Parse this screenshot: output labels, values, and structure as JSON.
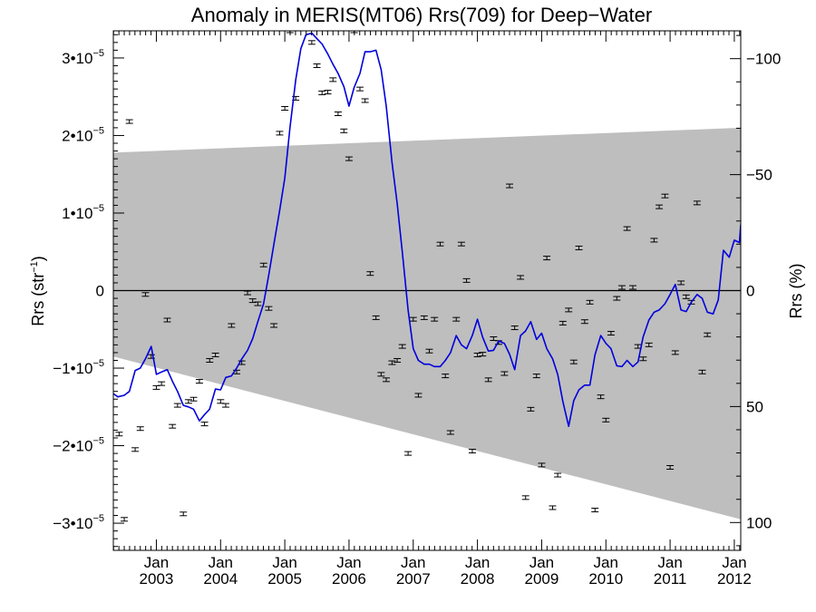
{
  "chart_data": {
    "type": "line",
    "title": "Anomaly in MERIS(MT06) Rrs(709) for Deep−Water",
    "ylabel": "Rrs (str",
    "ylabel_sup": "−1",
    "ylabel_close": ")",
    "y2label": "Rrs (%)",
    "ylim": [
      -3.35e-05,
      3.35e-05
    ],
    "xlim": [
      2002.33,
      2012.1
    ],
    "y2lim": [
      112,
      -112
    ],
    "x_ticks": [
      {
        "x": 2003.0,
        "month": "Jan",
        "year": "2003"
      },
      {
        "x": 2004.0,
        "month": "Jan",
        "year": "2004"
      },
      {
        "x": 2005.0,
        "month": "Jan",
        "year": "2005"
      },
      {
        "x": 2006.0,
        "month": "Jan",
        "year": "2006"
      },
      {
        "x": 2007.0,
        "month": "Jan",
        "year": "2007"
      },
      {
        "x": 2008.0,
        "month": "Jan",
        "year": "2008"
      },
      {
        "x": 2009.0,
        "month": "Jan",
        "year": "2009"
      },
      {
        "x": 2010.0,
        "month": "Jan",
        "year": "2010"
      },
      {
        "x": 2011.0,
        "month": "Jan",
        "year": "2011"
      },
      {
        "x": 2012.0,
        "month": "Jan",
        "year": "2012"
      }
    ],
    "y_ticks": [
      {
        "v": 3e-05,
        "label": "3•10",
        "sup": "−5"
      },
      {
        "v": 2e-05,
        "label": "2•10",
        "sup": "−5"
      },
      {
        "v": 1e-05,
        "label": "1•10",
        "sup": "−5"
      },
      {
        "v": 0,
        "label": "0",
        "sup": ""
      },
      {
        "v": -1e-05,
        "label": "−1•10",
        "sup": "−5"
      },
      {
        "v": -2e-05,
        "label": "−2•10",
        "sup": "−5"
      },
      {
        "v": -3e-05,
        "label": "−3•10",
        "sup": "−5"
      }
    ],
    "y2_ticks": [
      {
        "v": -100,
        "label": "−100"
      },
      {
        "v": -50,
        "label": "−50"
      },
      {
        "v": 0,
        "label": "0"
      },
      {
        "v": 50,
        "label": "50"
      },
      {
        "v": 100,
        "label": "100"
      }
    ],
    "band": {
      "x_start": 2002.33,
      "x_end": 2012.1,
      "upper": [
        1.78e-05,
        2.1e-05
      ],
      "lower": [
        -8.5e-06,
        -2.95e-05
      ],
      "color": "#bebebe"
    },
    "zero_line": 0,
    "line_color": "#0000dd",
    "line": [
      [
        2002.33,
        -1.33e-05
      ],
      [
        2002.4,
        -1.37e-05
      ],
      [
        2002.5,
        -1.35e-05
      ],
      [
        2002.58,
        -1.3e-05
      ],
      [
        2002.67,
        -1.03e-05
      ],
      [
        2002.75,
        -1e-05
      ],
      [
        2002.83,
        -8.8e-06
      ],
      [
        2002.92,
        -7.2e-06
      ],
      [
        2003.0,
        -1.08e-05
      ],
      [
        2003.08,
        -1.05e-05
      ],
      [
        2003.17,
        -1.02e-05
      ],
      [
        2003.25,
        -1.17e-05
      ],
      [
        2003.33,
        -1.3e-05
      ],
      [
        2003.42,
        -1.48e-05
      ],
      [
        2003.5,
        -1.5e-05
      ],
      [
        2003.58,
        -1.53e-05
      ],
      [
        2003.67,
        -1.68e-05
      ],
      [
        2003.75,
        -1.6e-05
      ],
      [
        2003.83,
        -1.53e-05
      ],
      [
        2003.92,
        -1.27e-05
      ],
      [
        2004.0,
        -1.28e-05
      ],
      [
        2004.08,
        -1.12e-05
      ],
      [
        2004.17,
        -1.1e-05
      ],
      [
        2004.25,
        -1e-05
      ],
      [
        2004.33,
        -8.8e-06
      ],
      [
        2004.42,
        -7.7e-06
      ],
      [
        2004.5,
        -6.2e-06
      ],
      [
        2004.58,
        -4e-06
      ],
      [
        2004.67,
        -1.7e-06
      ],
      [
        2004.75,
        2e-06
      ],
      [
        2004.83,
        6e-06
      ],
      [
        2004.92,
        1.03e-05
      ],
      [
        2005.0,
        1.45e-05
      ],
      [
        2005.08,
        2.1e-05
      ],
      [
        2005.17,
        2.72e-05
      ],
      [
        2005.25,
        3.12e-05
      ],
      [
        2005.33,
        3.3e-05
      ],
      [
        2005.42,
        3.32e-05
      ],
      [
        2005.5,
        3.25e-05
      ],
      [
        2005.58,
        3.18e-05
      ],
      [
        2005.67,
        3.05e-05
      ],
      [
        2005.75,
        2.92e-05
      ],
      [
        2005.83,
        2.8e-05
      ],
      [
        2005.92,
        2.63e-05
      ],
      [
        2006.0,
        2.38e-05
      ],
      [
        2006.08,
        2.62e-05
      ],
      [
        2006.17,
        2.8e-05
      ],
      [
        2006.25,
        3.08e-05
      ],
      [
        2006.33,
        3.08e-05
      ],
      [
        2006.42,
        3.1e-05
      ],
      [
        2006.5,
        2.85e-05
      ],
      [
        2006.58,
        2.38e-05
      ],
      [
        2006.67,
        1.65e-05
      ],
      [
        2006.75,
        1.12e-05
      ],
      [
        2006.83,
        5e-06
      ],
      [
        2006.92,
        -2.5e-06
      ],
      [
        2007.0,
        -7.5e-06
      ],
      [
        2007.08,
        -9e-06
      ],
      [
        2007.17,
        -9.5e-06
      ],
      [
        2007.25,
        -9.5e-06
      ],
      [
        2007.33,
        -9.8e-06
      ],
      [
        2007.42,
        -9.8e-06
      ],
      [
        2007.5,
        -9e-06
      ],
      [
        2007.58,
        -8e-06
      ],
      [
        2007.67,
        -5.8e-06
      ],
      [
        2007.75,
        -7e-06
      ],
      [
        2007.83,
        -7.5e-06
      ],
      [
        2007.92,
        -5.8e-06
      ],
      [
        2008.0,
        -3.7e-06
      ],
      [
        2008.08,
        -6e-06
      ],
      [
        2008.17,
        -7.8e-06
      ],
      [
        2008.25,
        -7.7e-06
      ],
      [
        2008.33,
        -6.5e-06
      ],
      [
        2008.42,
        -6.8e-06
      ],
      [
        2008.5,
        -8.2e-06
      ],
      [
        2008.58,
        -1.02e-05
      ],
      [
        2008.67,
        -5.8e-06
      ],
      [
        2008.75,
        -5.2e-06
      ],
      [
        2008.83,
        -4e-06
      ],
      [
        2008.92,
        -6.3e-06
      ],
      [
        2009.0,
        -5.5e-06
      ],
      [
        2009.08,
        -7.5e-06
      ],
      [
        2009.17,
        -8.8e-06
      ],
      [
        2009.25,
        -1.08e-05
      ],
      [
        2009.33,
        -1.43e-05
      ],
      [
        2009.42,
        -1.75e-05
      ],
      [
        2009.5,
        -1.42e-05
      ],
      [
        2009.58,
        -1.28e-05
      ],
      [
        2009.67,
        -1.22e-05
      ],
      [
        2009.75,
        -1.22e-05
      ],
      [
        2009.83,
        -8.3e-06
      ],
      [
        2009.92,
        -5.8e-06
      ],
      [
        2010.0,
        -6.8e-06
      ],
      [
        2010.08,
        -7.5e-06
      ],
      [
        2010.17,
        -9.7e-06
      ],
      [
        2010.25,
        -9.8e-06
      ],
      [
        2010.33,
        -9e-06
      ],
      [
        2010.42,
        -9.8e-06
      ],
      [
        2010.5,
        -9.2e-06
      ],
      [
        2010.58,
        -6e-06
      ],
      [
        2010.67,
        -3.8e-06
      ],
      [
        2010.75,
        -2.8e-06
      ],
      [
        2010.83,
        -2.5e-06
      ],
      [
        2010.92,
        -1.7e-06
      ],
      [
        2011.0,
        -5e-07
      ],
      [
        2011.08,
        8e-07
      ],
      [
        2011.17,
        -2.5e-06
      ],
      [
        2011.25,
        -2.7e-06
      ],
      [
        2011.33,
        -1.5e-06
      ],
      [
        2011.42,
        -5e-07
      ],
      [
        2011.5,
        -1e-06
      ],
      [
        2011.58,
        -2.8e-06
      ],
      [
        2011.67,
        -3e-06
      ],
      [
        2011.75,
        -1.2e-06
      ],
      [
        2011.83,
        5.2e-06
      ],
      [
        2011.92,
        4.3e-06
      ],
      [
        2012.0,
        6.5e-06
      ],
      [
        2012.08,
        6.2e-06
      ],
      [
        2012.1,
        8.5e-06
      ]
    ],
    "points": [
      [
        2002.42,
        -1.85e-05
      ],
      [
        2002.5,
        -2.95e-05
      ],
      [
        2002.58,
        2.18e-05
      ],
      [
        2002.67,
        -2.05e-05
      ],
      [
        2002.75,
        -1.78e-05
      ],
      [
        2002.83,
        -5e-07
      ],
      [
        2002.92,
        -8.5e-06
      ],
      [
        2003.0,
        -1.25e-05
      ],
      [
        2003.08,
        -1.2e-05
      ],
      [
        2003.17,
        -3.8e-06
      ],
      [
        2003.25,
        -1.75e-05
      ],
      [
        2003.33,
        -1.48e-05
      ],
      [
        2003.42,
        -2.88e-05
      ],
      [
        2003.5,
        -1.43e-05
      ],
      [
        2003.58,
        -1.4e-05
      ],
      [
        2003.67,
        -1.17e-05
      ],
      [
        2003.75,
        -1.72e-05
      ],
      [
        2003.83,
        -9e-06
      ],
      [
        2003.92,
        -8.3e-06
      ],
      [
        2004.0,
        -1.43e-05
      ],
      [
        2004.08,
        -1.48e-05
      ],
      [
        2004.17,
        -4.5e-06
      ],
      [
        2004.25,
        -1.05e-05
      ],
      [
        2004.33,
        -9.3e-06
      ],
      [
        2004.42,
        -3e-07
      ],
      [
        2004.5,
        -1.3e-06
      ],
      [
        2004.58,
        -1.7e-06
      ],
      [
        2004.67,
        3.3e-06
      ],
      [
        2004.75,
        -2.3e-06
      ],
      [
        2004.83,
        -4.5e-06
      ],
      [
        2004.92,
        2.03e-05
      ],
      [
        2005.0,
        2.35e-05
      ],
      [
        2005.08,
        3.35e-05
      ],
      [
        2005.17,
        2.48e-05
      ],
      [
        2005.25,
        3.4e-05
      ],
      [
        2005.33,
        3.38e-05
      ],
      [
        2005.42,
        3.2e-05
      ],
      [
        2005.5,
        2.9e-05
      ],
      [
        2005.58,
        2.55e-05
      ],
      [
        2005.67,
        2.56e-05
      ],
      [
        2005.75,
        2.72e-05
      ],
      [
        2005.83,
        2.28e-05
      ],
      [
        2005.92,
        2.06e-05
      ],
      [
        2006.0,
        1.7e-05
      ],
      [
        2006.08,
        3.35e-05
      ],
      [
        2006.17,
        2.6e-05
      ],
      [
        2006.25,
        2.45e-05
      ],
      [
        2006.33,
        2.2e-06
      ],
      [
        2006.42,
        -3.5e-06
      ],
      [
        2006.5,
        -1.08e-05
      ],
      [
        2006.58,
        -1.15e-05
      ],
      [
        2006.67,
        -9.3e-06
      ],
      [
        2006.75,
        -9e-06
      ],
      [
        2006.83,
        -7.2e-06
      ],
      [
        2006.92,
        -2.1e-05
      ],
      [
        2007.0,
        -3.7e-06
      ],
      [
        2007.08,
        -1.35e-05
      ],
      [
        2007.17,
        -3.5e-06
      ],
      [
        2007.25,
        -7.8e-06
      ],
      [
        2007.33,
        -3.7e-06
      ],
      [
        2007.42,
        6e-06
      ],
      [
        2007.5,
        -1.1e-05
      ],
      [
        2007.58,
        -1.83e-05
      ],
      [
        2007.67,
        -3.7e-06
      ],
      [
        2007.75,
        6e-06
      ],
      [
        2007.83,
        1.3e-06
      ],
      [
        2007.92,
        -2.07e-05
      ],
      [
        2008.0,
        -8.3e-06
      ],
      [
        2008.08,
        -8.2e-06
      ],
      [
        2008.17,
        -1.15e-05
      ],
      [
        2008.25,
        -6.2e-06
      ],
      [
        2008.33,
        -6.7e-06
      ],
      [
        2008.42,
        -1.07e-05
      ],
      [
        2008.5,
        1.35e-05
      ],
      [
        2008.58,
        -4.8e-06
      ],
      [
        2008.67,
        1.7e-06
      ],
      [
        2008.75,
        -2.67e-05
      ],
      [
        2008.83,
        -1.53e-05
      ],
      [
        2008.92,
        -1.1e-05
      ],
      [
        2009.0,
        -2.25e-05
      ],
      [
        2009.08,
        4.2e-06
      ],
      [
        2009.17,
        -2.8e-05
      ],
      [
        2009.25,
        -2.38e-05
      ],
      [
        2009.33,
        -4.2e-06
      ],
      [
        2009.42,
        -2.5e-06
      ],
      [
        2009.5,
        -9.2e-06
      ],
      [
        2009.58,
        5.5e-06
      ],
      [
        2009.67,
        -4e-06
      ],
      [
        2009.75,
        -1.5e-06
      ],
      [
        2009.83,
        -2.83e-05
      ],
      [
        2009.92,
        -1.37e-05
      ],
      [
        2010.0,
        -1.67e-05
      ],
      [
        2010.08,
        -5.5e-06
      ],
      [
        2010.17,
        -1e-06
      ],
      [
        2010.25,
        4e-07
      ],
      [
        2010.33,
        8e-06
      ],
      [
        2010.42,
        4e-07
      ],
      [
        2010.5,
        -7.2e-06
      ],
      [
        2010.58,
        -8.8e-06
      ],
      [
        2010.67,
        -7e-06
      ],
      [
        2010.75,
        6.5e-06
      ],
      [
        2010.83,
        1.08e-05
      ],
      [
        2010.92,
        1.22e-05
      ],
      [
        2011.0,
        -2.28e-05
      ],
      [
        2011.08,
        -8e-06
      ],
      [
        2011.17,
        1e-06
      ],
      [
        2011.25,
        -8e-07
      ],
      [
        2011.33,
        -1.5e-06
      ],
      [
        2011.42,
        1.13e-05
      ],
      [
        2011.5,
        -1.05e-05
      ],
      [
        2011.58,
        -5.7e-06
      ]
    ]
  }
}
